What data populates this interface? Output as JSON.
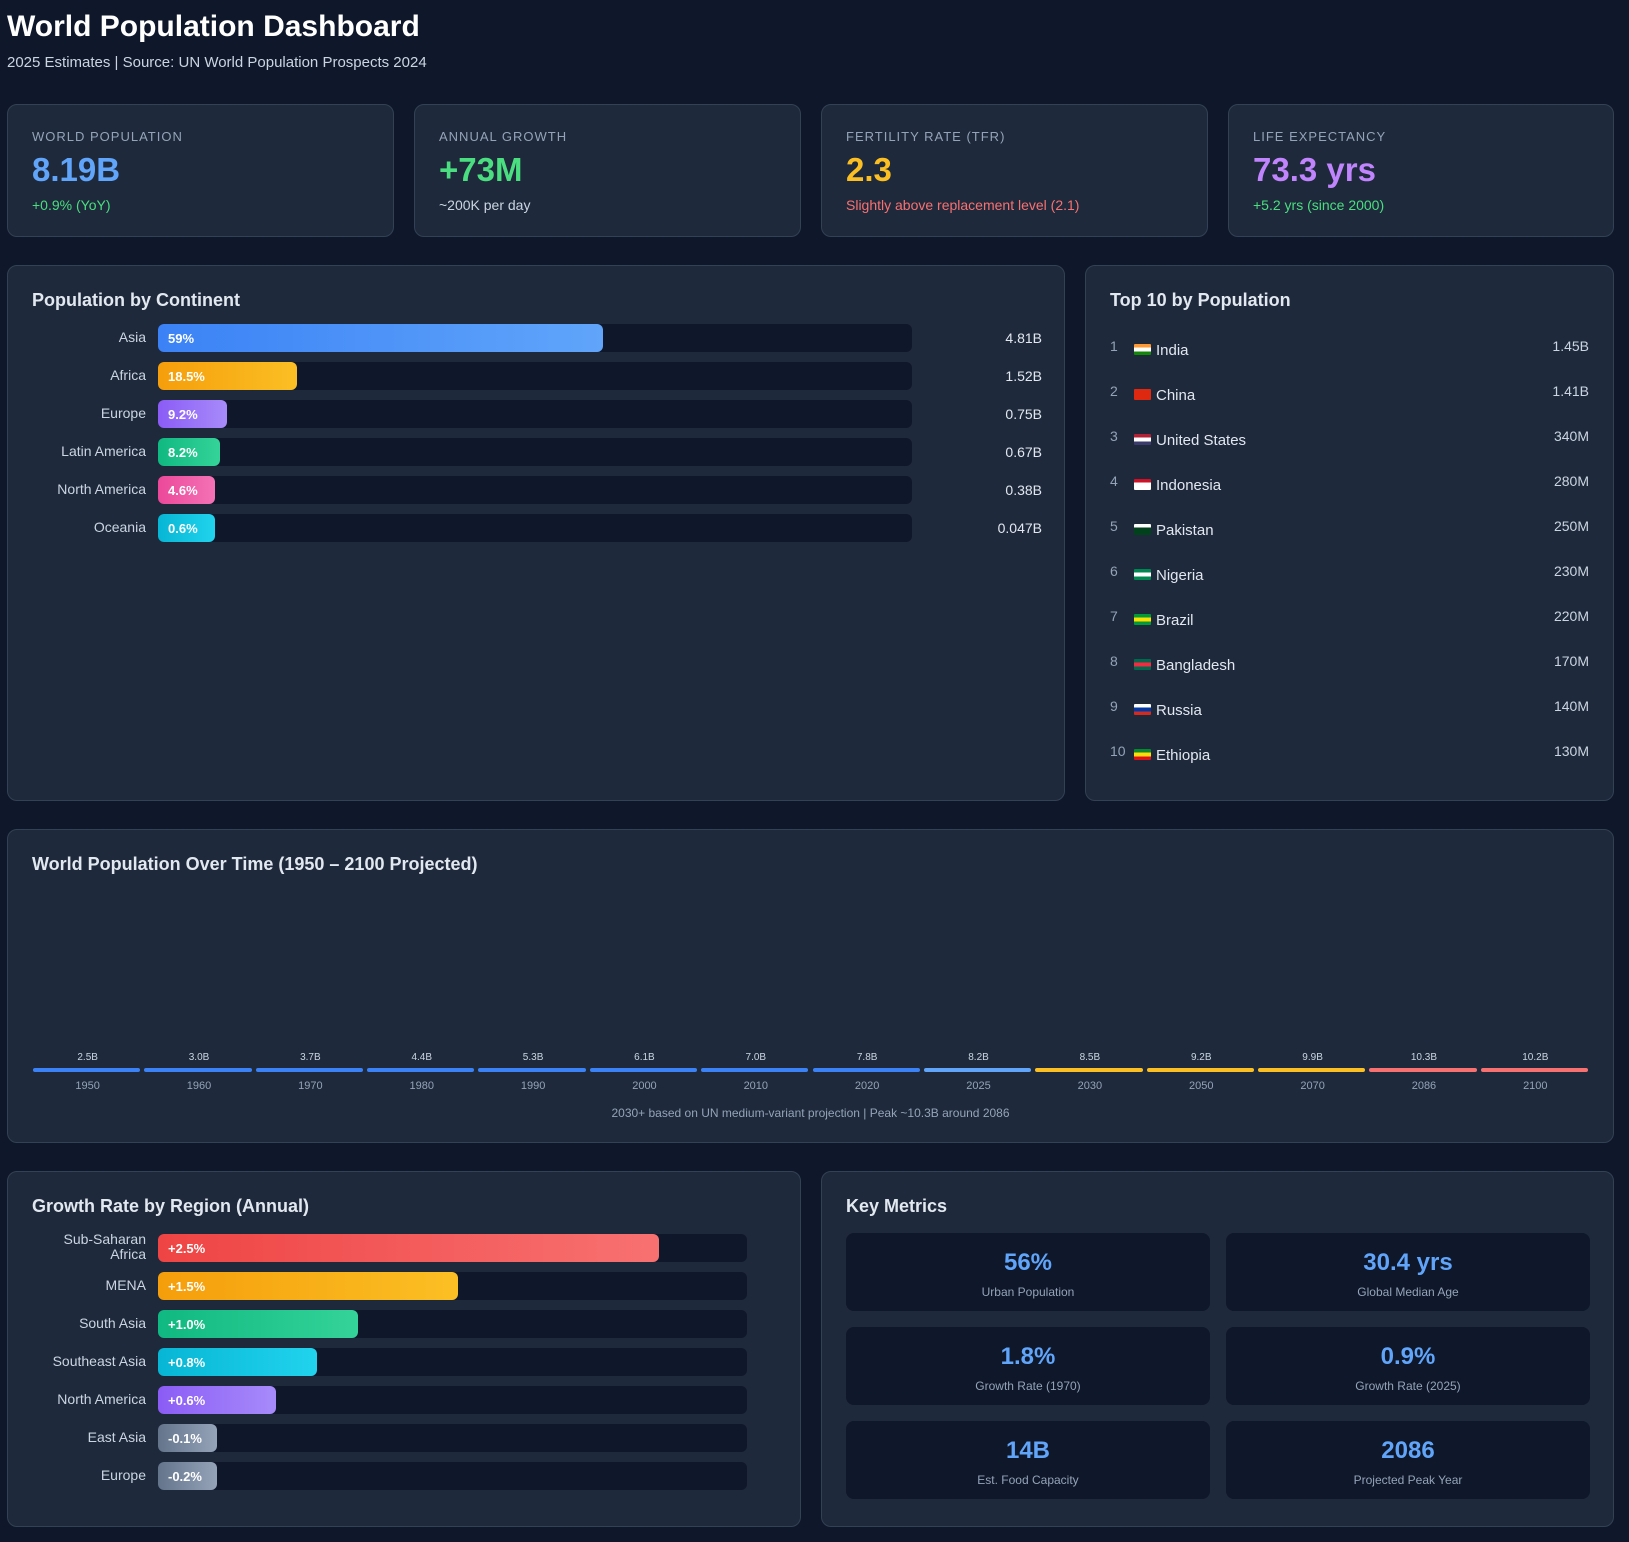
{
  "header": {
    "title": "World Population Dashboard",
    "subtitle": "2025 Estimates | Source: UN World Population Prospects 2024"
  },
  "kpis": [
    {
      "label": "WORLD POPULATION",
      "value": "8.19B",
      "sub": "+0.9% (YoY)",
      "value_color": "#60a5fa",
      "sub_color": "#4ade80"
    },
    {
      "label": "ANNUAL GROWTH",
      "value": "+73M",
      "sub": "~200K per day",
      "value_color": "#4ade80",
      "sub_color": "#cbd5e1"
    },
    {
      "label": "FERTILITY RATE (TFR)",
      "value": "2.3",
      "sub": "Slightly above replacement level (2.1)",
      "value_color": "#fbbf24",
      "sub_color": "#f87171"
    },
    {
      "label": "LIFE EXPECTANCY",
      "value": "73.3 yrs",
      "sub": "+5.2 yrs (since 2000)",
      "value_color": "#c084fc",
      "sub_color": "#4ade80"
    }
  ],
  "continent_panel": {
    "title": "Population by Continent"
  },
  "top10_panel": {
    "title": "Top 10 by Population",
    "items": [
      {
        "rank": "1",
        "name": "India",
        "value": "1.45B",
        "flag": [
          "#ff9933",
          "#ffffff",
          "#138808"
        ]
      },
      {
        "rank": "2",
        "name": "China",
        "value": "1.41B",
        "flag": [
          "#de2910",
          "#de2910",
          "#de2910"
        ]
      },
      {
        "rank": "3",
        "name": "United States",
        "value": "340M",
        "flag": [
          "#b22234",
          "#ffffff",
          "#3c3b6e"
        ]
      },
      {
        "rank": "4",
        "name": "Indonesia",
        "value": "280M",
        "flag": [
          "#ce1126",
          "#ffffff",
          "#ffffff"
        ]
      },
      {
        "rank": "5",
        "name": "Pakistan",
        "value": "250M",
        "flag": [
          "#ffffff",
          "#01411c",
          "#01411c"
        ]
      },
      {
        "rank": "6",
        "name": "Nigeria",
        "value": "230M",
        "flag": [
          "#008751",
          "#ffffff",
          "#008751"
        ]
      },
      {
        "rank": "7",
        "name": "Brazil",
        "value": "220M",
        "flag": [
          "#009b3a",
          "#fedf00",
          "#009b3a"
        ]
      },
      {
        "rank": "8",
        "name": "Bangladesh",
        "value": "170M",
        "flag": [
          "#006a4e",
          "#f42a41",
          "#006a4e"
        ]
      },
      {
        "rank": "9",
        "name": "Russia",
        "value": "140M",
        "flag": [
          "#ffffff",
          "#0039a6",
          "#d52b1e"
        ]
      },
      {
        "rank": "10",
        "name": "Ethiopia",
        "value": "130M",
        "flag": [
          "#078930",
          "#fcdd09",
          "#da121a"
        ]
      }
    ]
  },
  "timeline_panel": {
    "title": "World Population Over Time (1950 – 2100 Projected)",
    "note": "2030+ based on UN medium-variant projection | Peak ~10.3B around 2086"
  },
  "growth_panel": {
    "title": "Growth Rate by Region (Annual)"
  },
  "metrics_panel": {
    "title": "Key Metrics",
    "items": [
      {
        "value": "56%",
        "label": "Urban Population"
      },
      {
        "value": "30.4 yrs",
        "label": "Global Median Age"
      },
      {
        "value": "1.8%",
        "label": "Growth Rate (1970)"
      },
      {
        "value": "0.9%",
        "label": "Growth Rate (2025)"
      },
      {
        "value": "14B",
        "label": "Est. Food Capacity"
      },
      {
        "value": "2086",
        "label": "Projected Peak Year"
      }
    ]
  },
  "chart_data": [
    {
      "type": "bar",
      "orientation": "horizontal",
      "title": "Population by Continent",
      "categories": [
        "Asia",
        "Africa",
        "Europe",
        "Latin America",
        "North America",
        "Oceania"
      ],
      "values": [
        59,
        18.5,
        9.2,
        8.2,
        4.6,
        0.6
      ],
      "value_labels": [
        "59%",
        "18.5%",
        "9.2%",
        "8.2%",
        "4.6%",
        "0.6%"
      ],
      "populations": [
        "4.81B",
        "1.52B",
        "0.75B",
        "0.67B",
        "0.38B",
        "0.047B"
      ],
      "colors": [
        [
          "#3b82f6",
          "#60a5fa"
        ],
        [
          "#f59e0b",
          "#fbbf24"
        ],
        [
          "#8b5cf6",
          "#a78bfa"
        ],
        [
          "#10b981",
          "#34d399"
        ],
        [
          "#ec4899",
          "#f472b6"
        ],
        [
          "#06b6d4",
          "#22d3ee"
        ]
      ],
      "xlim": [
        0,
        100
      ]
    },
    {
      "type": "bar",
      "title": "World Population Over Time (1950 – 2100 Projected)",
      "categories": [
        "1950",
        "1960",
        "1970",
        "1980",
        "1990",
        "2000",
        "2010",
        "2020",
        "2025",
        "2030",
        "2050",
        "2070",
        "2086",
        "2100"
      ],
      "values": [
        2.5,
        3.0,
        3.7,
        4.4,
        5.3,
        6.1,
        7.0,
        7.8,
        8.2,
        8.5,
        9.2,
        9.9,
        10.3,
        10.2
      ],
      "value_labels": [
        "2.5B",
        "3.0B",
        "3.7B",
        "4.4B",
        "5.3B",
        "6.1B",
        "7.0B",
        "7.8B",
        "8.2B",
        "8.5B",
        "9.2B",
        "9.9B",
        "10.3B",
        "10.2B"
      ],
      "colors": [
        "#3b82f6",
        "#3b82f6",
        "#3b82f6",
        "#3b82f6",
        "#3b82f6",
        "#3b82f6",
        "#3b82f6",
        "#3b82f6",
        "#60a5fa",
        "#fbbf24",
        "#fbbf24",
        "#fbbf24",
        "#f87171",
        "#f87171"
      ]
    },
    {
      "type": "bar",
      "orientation": "horizontal",
      "title": "Growth Rate by Region (Annual)",
      "categories": [
        "Sub-Saharan Africa",
        "MENA",
        "South Asia",
        "Southeast Asia",
        "North America",
        "East Asia",
        "Europe"
      ],
      "values": [
        2.5,
        1.5,
        1.0,
        0.8,
        0.6,
        -0.1,
        -0.2
      ],
      "value_labels": [
        "+2.5%",
        "+1.5%",
        "+1.0%",
        "+0.8%",
        "+0.6%",
        "-0.1%",
        "-0.2%"
      ],
      "fill_fractions": [
        0.85,
        0.51,
        0.34,
        0.27,
        0.2,
        0.1,
        0.1
      ],
      "colors": [
        [
          "#ef4444",
          "#f87171"
        ],
        [
          "#f59e0b",
          "#fbbf24"
        ],
        [
          "#10b981",
          "#34d399"
        ],
        [
          "#06b6d4",
          "#22d3ee"
        ],
        [
          "#8b5cf6",
          "#a78bfa"
        ],
        [
          "#64748b",
          "#94a3b8"
        ],
        [
          "#64748b",
          "#94a3b8"
        ]
      ]
    }
  ]
}
